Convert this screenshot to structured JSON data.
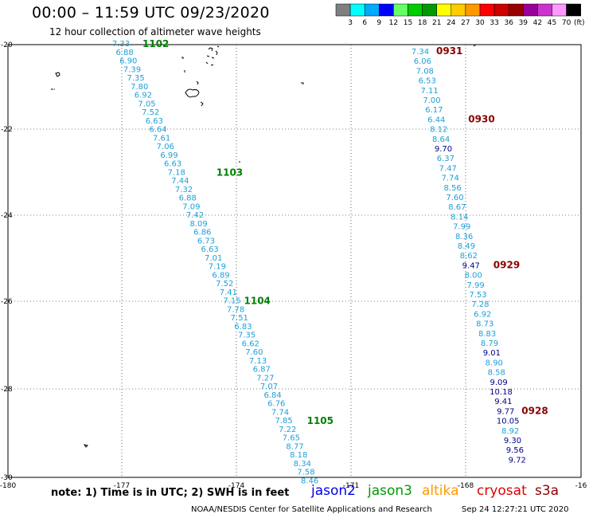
{
  "header": {
    "title": "00:00 – 11:59 UTC 09/23/2020",
    "subtitle": "12 hour collection of altimeter wave heights"
  },
  "legend": {
    "unit": "(ft)",
    "bins": [
      {
        "label": "3",
        "color": "#7f7f7f"
      },
      {
        "label": "6",
        "color": "#00ffff"
      },
      {
        "label": "9",
        "color": "#00aaff"
      },
      {
        "label": "12",
        "color": "#0000ff"
      },
      {
        "label": "15",
        "color": "#66ff66"
      },
      {
        "label": "18",
        "color": "#00cc00"
      },
      {
        "label": "21",
        "color": "#009900"
      },
      {
        "label": "24",
        "color": "#ffff00"
      },
      {
        "label": "27",
        "color": "#ffcc00"
      },
      {
        "label": "30",
        "color": "#ff9900"
      },
      {
        "label": "33",
        "color": "#ff0000"
      },
      {
        "label": "36",
        "color": "#cc0000"
      },
      {
        "label": "39",
        "color": "#990000"
      },
      {
        "label": "42",
        "color": "#990099"
      },
      {
        "label": "45",
        "color": "#cc33cc"
      },
      {
        "label": "70",
        "color": "#ff99ff"
      },
      {
        "label": "",
        "color": "#000000"
      }
    ]
  },
  "axes": {
    "x_ticks": [
      "-180",
      "-177",
      "-174",
      "-171",
      "-168",
      "-16"
    ],
    "y_ticks": [
      "-20",
      "-22",
      "-24",
      "-26",
      "-28",
      "-30"
    ]
  },
  "colors": {
    "light_blue": "#1e9fd8",
    "dark_blue": "#00008b",
    "green": "#008000",
    "dark_red": "#8b0000",
    "jason2": "#0000ee",
    "jason3": "#009900",
    "altika": "#ff9900",
    "cryosat": "#dd0000",
    "s3a": "#8b0000"
  },
  "tracks": [
    {
      "name": "west-track",
      "values": [
        "7.33",
        "6.88",
        "6.90",
        "7.39",
        "7.35",
        "7.80",
        "6.92",
        "7.05",
        "7.52",
        "6.63",
        "6.64",
        "7.61",
        "7.06",
        "6.99",
        "6.63",
        "7.18",
        "7.44",
        "7.32",
        "6.88",
        "7.09",
        "7.42",
        "8.09",
        "6.86",
        "6.73",
        "6.63",
        "7.01",
        "7.19",
        "6.89",
        "7.52",
        "7.41",
        "7.15",
        "7.78",
        "7.51",
        "6.83",
        "7.35",
        "6.62",
        "7.60",
        "7.13",
        "6.87",
        "7.27",
        "7.07",
        "6.84",
        "6.76",
        "7.74",
        "7.85",
        "7.22",
        "7.65",
        "8.77",
        "8.18",
        "8.34",
        "7.58",
        "8.46"
      ],
      "time_labels": [
        {
          "after_index": 0,
          "text": "1102"
        },
        {
          "after_index": 15,
          "text": "1103"
        },
        {
          "after_index": 30,
          "text": "1104"
        },
        {
          "after_index": 44,
          "text": "1105"
        }
      ]
    },
    {
      "name": "east-track",
      "values": [
        "7.34",
        "6.06",
        "7.08",
        "6.53",
        "7.11",
        "7.00",
        "6.17",
        "6.44",
        "8.12",
        "8.64",
        "9.70",
        "6.37",
        "7.47",
        "7.74",
        "8.56",
        "7.60",
        "8.67",
        "8.14",
        "7.99",
        "8.36",
        "8.49",
        "8.62",
        "9.47",
        "8.00",
        "7.99",
        "7.53",
        "7.28",
        "6.92",
        "8.73",
        "8.83",
        "8.79",
        "9.01",
        "8.90",
        "8.58",
        "9.09",
        "10.18",
        "9.41",
        "9.77",
        "10.05",
        "8.92",
        "9.30",
        "9.56",
        "9.72"
      ],
      "time_labels": [
        {
          "after_index": 0,
          "text": "0931"
        },
        {
          "after_index": 7,
          "text": "0930"
        },
        {
          "after_index": 22,
          "text": "0929"
        },
        {
          "after_index": 37,
          "text": "0928"
        }
      ]
    }
  ],
  "footer": {
    "note": "note: 1) Time is in UTC; 2) SWH is in feet",
    "missions": {
      "jason2": "jason2",
      "jason3": "jason3",
      "altika": "altika",
      "cryosat": "cryosat",
      "s3a": "s3a"
    },
    "credit": "NOAA/NESDIS Center for Satellite Applications and Research",
    "timestamp": "Sep 24 12:27:21 UTC 2020"
  }
}
